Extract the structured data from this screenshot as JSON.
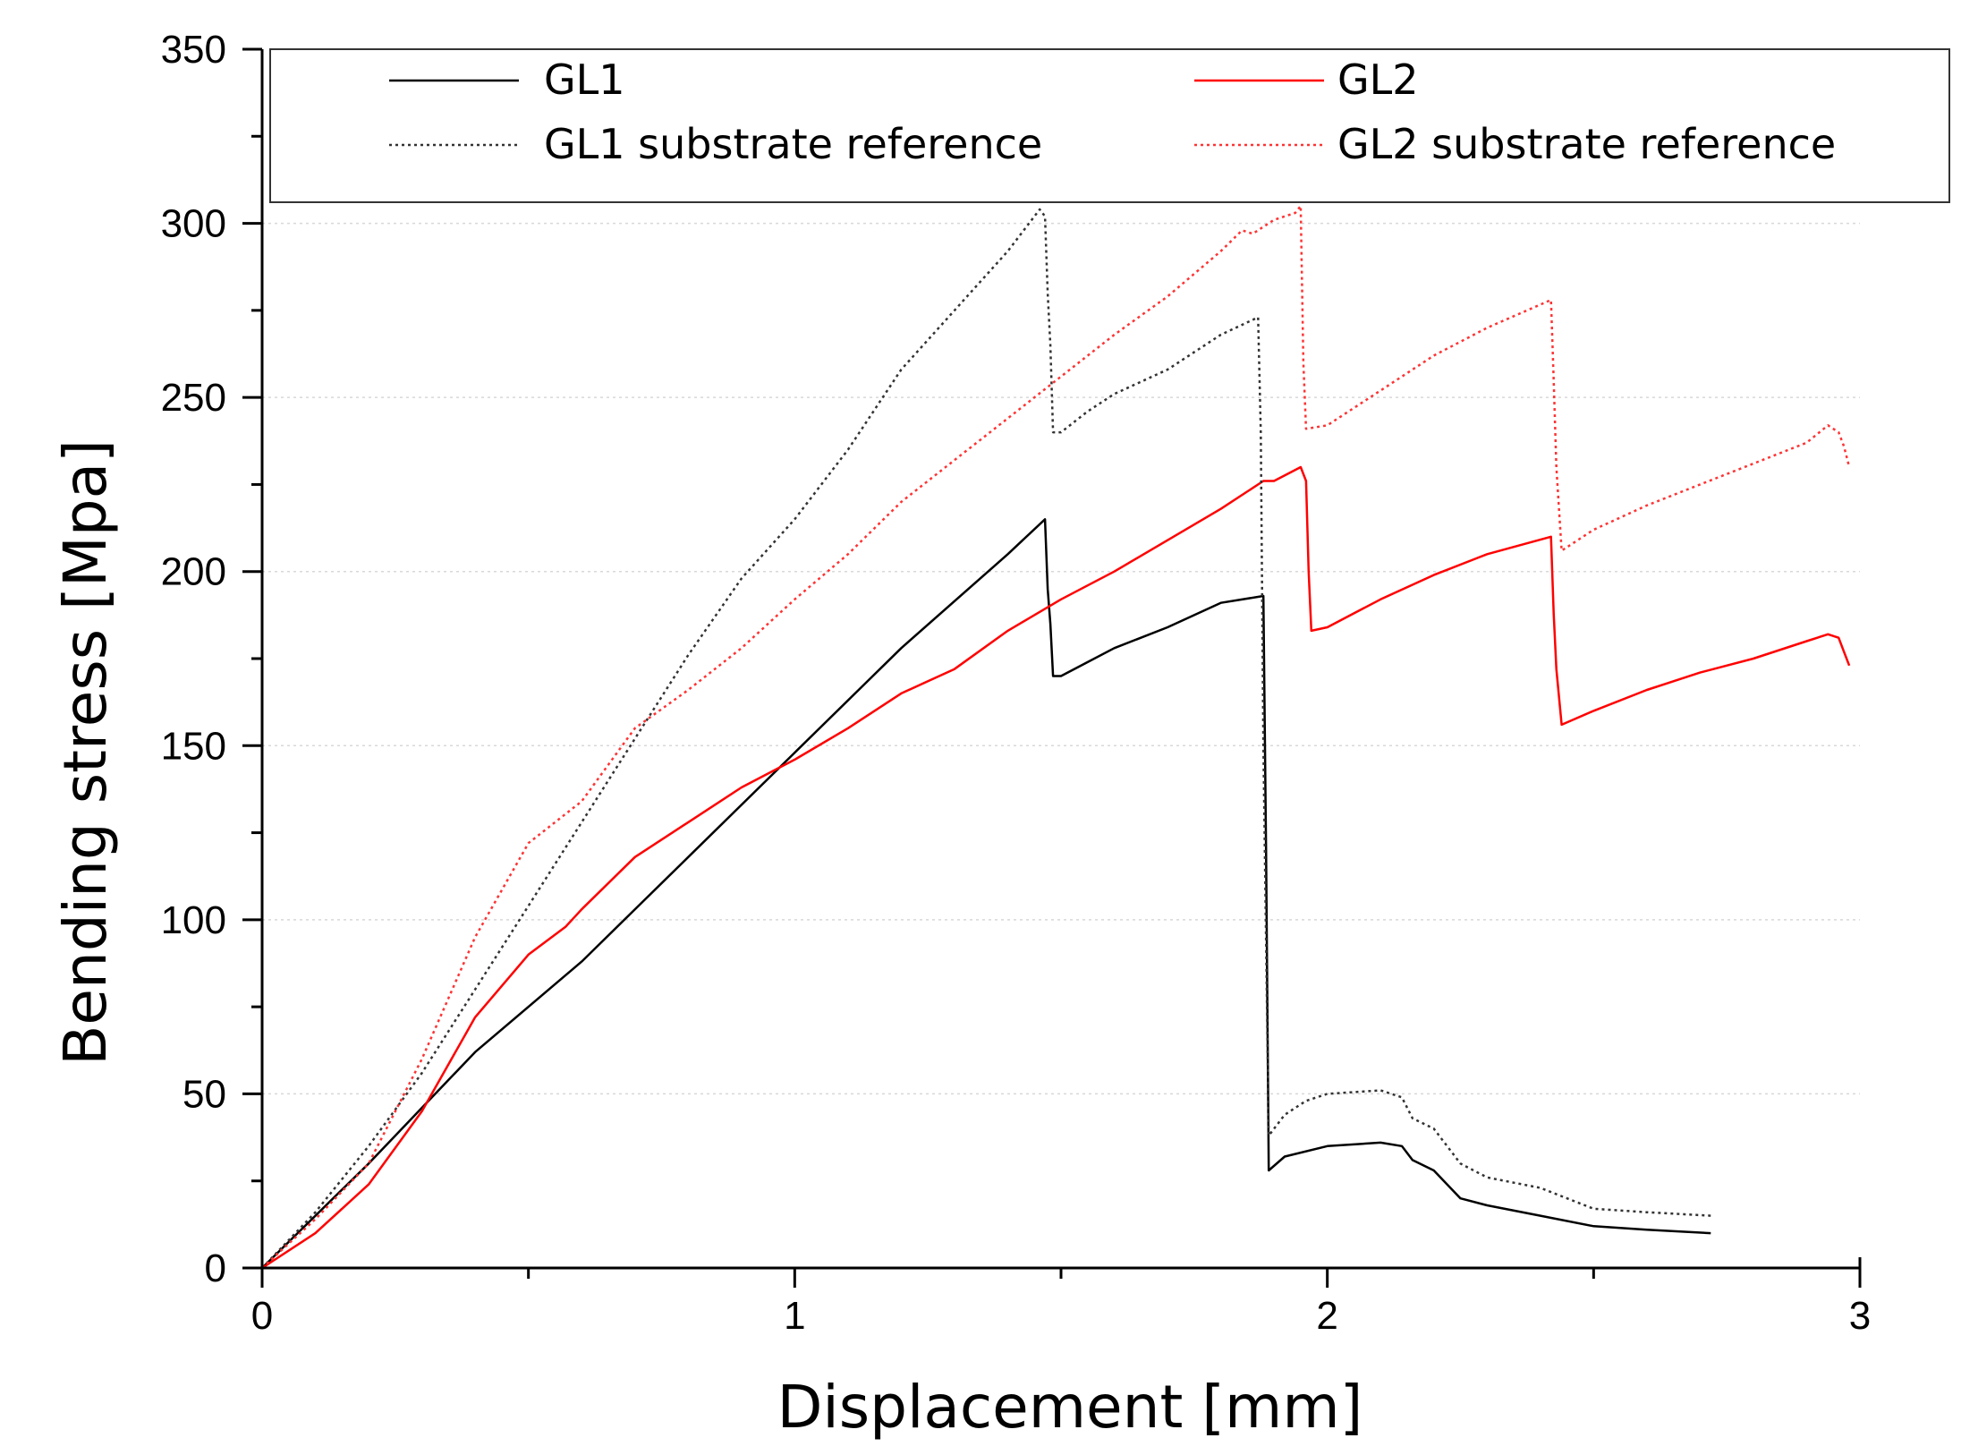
{
  "chart_data": {
    "type": "line",
    "title": "",
    "xlabel": "Displacement [mm]",
    "ylabel": "Bending stress [Mpa]",
    "xlim": [
      0,
      3
    ],
    "ylim": [
      0,
      350
    ],
    "x_ticks": [
      "0",
      "1",
      "2",
      "3"
    ],
    "x_tick_values": [
      0,
      1,
      2,
      3
    ],
    "y_ticks": [
      "0",
      "50",
      "100",
      "150",
      "200",
      "250",
      "300",
      "350"
    ],
    "y_tick_values": [
      0,
      50,
      100,
      150,
      200,
      250,
      300,
      350
    ],
    "grid": "horizontal dotted",
    "legend_position": "top",
    "series": [
      {
        "name": "GL1",
        "color": "#000000",
        "style": "solid",
        "points": [
          [
            0,
            0
          ],
          [
            0.2,
            30
          ],
          [
            0.4,
            62
          ],
          [
            0.6,
            88
          ],
          [
            0.8,
            118
          ],
          [
            1.0,
            148
          ],
          [
            1.2,
            178
          ],
          [
            1.4,
            205
          ],
          [
            1.47,
            215
          ],
          [
            1.475,
            195
          ],
          [
            1.48,
            185
          ],
          [
            1.485,
            170
          ],
          [
            1.5,
            170
          ],
          [
            1.55,
            174
          ],
          [
            1.6,
            178
          ],
          [
            1.7,
            184
          ],
          [
            1.8,
            191
          ],
          [
            1.88,
            193
          ],
          [
            1.885,
            120
          ],
          [
            1.89,
            28
          ],
          [
            1.92,
            32
          ],
          [
            2.0,
            35
          ],
          [
            2.1,
            36
          ],
          [
            2.14,
            35
          ],
          [
            2.16,
            31
          ],
          [
            2.2,
            28
          ],
          [
            2.25,
            20
          ],
          [
            2.3,
            18
          ],
          [
            2.4,
            15
          ],
          [
            2.5,
            12
          ],
          [
            2.6,
            11
          ],
          [
            2.72,
            10
          ]
        ]
      },
      {
        "name": "GL2",
        "color": "#ff0000",
        "style": "solid",
        "points": [
          [
            0,
            0
          ],
          [
            0.1,
            10
          ],
          [
            0.2,
            24
          ],
          [
            0.3,
            45
          ],
          [
            0.4,
            72
          ],
          [
            0.5,
            90
          ],
          [
            0.57,
            98
          ],
          [
            0.6,
            103
          ],
          [
            0.7,
            118
          ],
          [
            0.8,
            128
          ],
          [
            0.9,
            138
          ],
          [
            1.0,
            146
          ],
          [
            1.1,
            155
          ],
          [
            1.2,
            165
          ],
          [
            1.3,
            172
          ],
          [
            1.4,
            183
          ],
          [
            1.5,
            192
          ],
          [
            1.6,
            200
          ],
          [
            1.7,
            209
          ],
          [
            1.8,
            218
          ],
          [
            1.88,
            226
          ],
          [
            1.9,
            226
          ],
          [
            1.95,
            230
          ],
          [
            1.96,
            226
          ],
          [
            1.965,
            200
          ],
          [
            1.97,
            183
          ],
          [
            2.0,
            184
          ],
          [
            2.1,
            192
          ],
          [
            2.2,
            199
          ],
          [
            2.3,
            205
          ],
          [
            2.42,
            210
          ],
          [
            2.425,
            188
          ],
          [
            2.43,
            172
          ],
          [
            2.44,
            156
          ],
          [
            2.5,
            160
          ],
          [
            2.6,
            166
          ],
          [
            2.7,
            171
          ],
          [
            2.8,
            175
          ],
          [
            2.9,
            180
          ],
          [
            2.94,
            182
          ],
          [
            2.96,
            181
          ],
          [
            2.97,
            177
          ],
          [
            2.98,
            173
          ]
        ]
      },
      {
        "name": "GL1 substrate reference",
        "color": "#333333",
        "style": "dotted",
        "points": [
          [
            0,
            0
          ],
          [
            0.1,
            16
          ],
          [
            0.2,
            35
          ],
          [
            0.3,
            56
          ],
          [
            0.4,
            80
          ],
          [
            0.5,
            104
          ],
          [
            0.6,
            128
          ],
          [
            0.7,
            152
          ],
          [
            0.8,
            176
          ],
          [
            0.9,
            198
          ],
          [
            1.0,
            215
          ],
          [
            1.1,
            235
          ],
          [
            1.2,
            258
          ],
          [
            1.3,
            275
          ],
          [
            1.4,
            292
          ],
          [
            1.46,
            304
          ],
          [
            1.47,
            302
          ],
          [
            1.475,
            280
          ],
          [
            1.48,
            265
          ],
          [
            1.485,
            240
          ],
          [
            1.5,
            240
          ],
          [
            1.55,
            246
          ],
          [
            1.6,
            251
          ],
          [
            1.7,
            258
          ],
          [
            1.8,
            268
          ],
          [
            1.87,
            273
          ],
          [
            1.875,
            240
          ],
          [
            1.88,
            150
          ],
          [
            1.89,
            38
          ],
          [
            1.92,
            44
          ],
          [
            1.96,
            48
          ],
          [
            2.0,
            50
          ],
          [
            2.1,
            51
          ],
          [
            2.14,
            49
          ],
          [
            2.16,
            43
          ],
          [
            2.2,
            40
          ],
          [
            2.25,
            30
          ],
          [
            2.3,
            26
          ],
          [
            2.4,
            23
          ],
          [
            2.5,
            17
          ],
          [
            2.6,
            16
          ],
          [
            2.72,
            15
          ]
        ]
      },
      {
        "name": "GL2 substrate reference",
        "color": "#ff3333",
        "style": "dotted",
        "points": [
          [
            0,
            0
          ],
          [
            0.1,
            14
          ],
          [
            0.2,
            30
          ],
          [
            0.3,
            60
          ],
          [
            0.4,
            95
          ],
          [
            0.5,
            122
          ],
          [
            0.6,
            134
          ],
          [
            0.7,
            155
          ],
          [
            0.8,
            166
          ],
          [
            0.9,
            178
          ],
          [
            1.0,
            192
          ],
          [
            1.1,
            205
          ],
          [
            1.2,
            220
          ],
          [
            1.3,
            232
          ],
          [
            1.4,
            244
          ],
          [
            1.5,
            256
          ],
          [
            1.6,
            268
          ],
          [
            1.7,
            279
          ],
          [
            1.8,
            292
          ],
          [
            1.84,
            298
          ],
          [
            1.86,
            297
          ],
          [
            1.9,
            301
          ],
          [
            1.94,
            303
          ],
          [
            1.95,
            305
          ],
          [
            1.955,
            260
          ],
          [
            1.96,
            241
          ],
          [
            2.0,
            242
          ],
          [
            2.1,
            252
          ],
          [
            2.2,
            262
          ],
          [
            2.3,
            270
          ],
          [
            2.42,
            278
          ],
          [
            2.425,
            255
          ],
          [
            2.43,
            230
          ],
          [
            2.44,
            206
          ],
          [
            2.5,
            212
          ],
          [
            2.6,
            219
          ],
          [
            2.7,
            225
          ],
          [
            2.8,
            231
          ],
          [
            2.9,
            237
          ],
          [
            2.94,
            242
          ],
          [
            2.96,
            240
          ],
          [
            2.97,
            236
          ],
          [
            2.98,
            230
          ]
        ]
      }
    ]
  }
}
